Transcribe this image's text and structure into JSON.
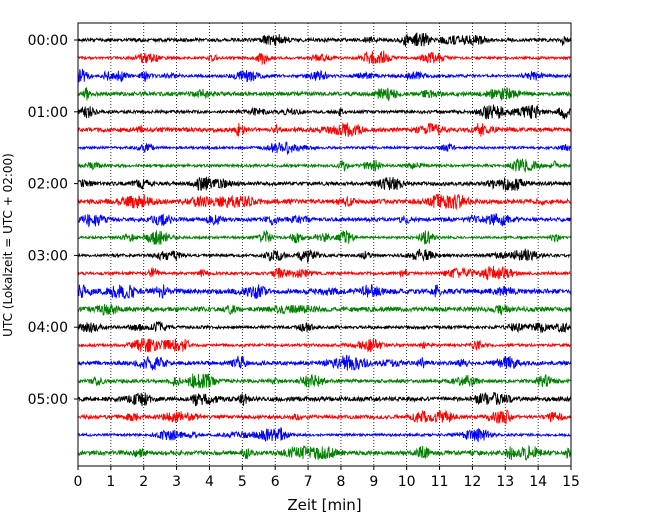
{
  "chart_data": {
    "type": "line",
    "title": "",
    "xlabel": "Zeit  [min]",
    "ylabel": "UTC (Lokalzeit = UTC + 02:00)",
    "xlim": [
      0,
      15
    ],
    "x_ticks": [
      0,
      1,
      2,
      3,
      4,
      5,
      6,
      7,
      8,
      9,
      10,
      11,
      12,
      13,
      14,
      15
    ],
    "x_tick_labels": [
      "0",
      "1",
      "2",
      "3",
      "4",
      "5",
      "6",
      "7",
      "8",
      "9",
      "10",
      "11",
      "12",
      "13",
      "14",
      "15"
    ],
    "y_tick_labels": [
      "00:00",
      "01:00",
      "02:00",
      "03:00",
      "04:00",
      "05:00"
    ],
    "y_tick_rows": [
      0,
      4,
      8,
      12,
      16,
      20
    ],
    "trace_minutes": 15,
    "trace_count": 24,
    "color_cycle": [
      "#000000",
      "#ff0000",
      "#0000ff",
      "#008000"
    ],
    "grid": "vertical dotted lines at every minute",
    "legend": "none",
    "series": [
      {
        "start": "00:00",
        "color": "#000000"
      },
      {
        "start": "00:15",
        "color": "#ff0000"
      },
      {
        "start": "00:30",
        "color": "#0000ff"
      },
      {
        "start": "00:45",
        "color": "#008000"
      },
      {
        "start": "01:00",
        "color": "#000000"
      },
      {
        "start": "01:15",
        "color": "#ff0000"
      },
      {
        "start": "01:30",
        "color": "#0000ff"
      },
      {
        "start": "01:45",
        "color": "#008000"
      },
      {
        "start": "02:00",
        "color": "#000000"
      },
      {
        "start": "02:15",
        "color": "#ff0000"
      },
      {
        "start": "02:30",
        "color": "#0000ff"
      },
      {
        "start": "02:45",
        "color": "#008000"
      },
      {
        "start": "03:00",
        "color": "#000000"
      },
      {
        "start": "03:15",
        "color": "#ff0000"
      },
      {
        "start": "03:30",
        "color": "#0000ff"
      },
      {
        "start": "03:45",
        "color": "#008000"
      },
      {
        "start": "04:00",
        "color": "#000000"
      },
      {
        "start": "04:15",
        "color": "#ff0000"
      },
      {
        "start": "04:30",
        "color": "#0000ff"
      },
      {
        "start": "04:45",
        "color": "#008000"
      },
      {
        "start": "05:00",
        "color": "#000000"
      },
      {
        "start": "05:15",
        "color": "#ff0000"
      },
      {
        "start": "05:30",
        "color": "#0000ff"
      },
      {
        "start": "05:45",
        "color": "#008000"
      }
    ]
  }
}
